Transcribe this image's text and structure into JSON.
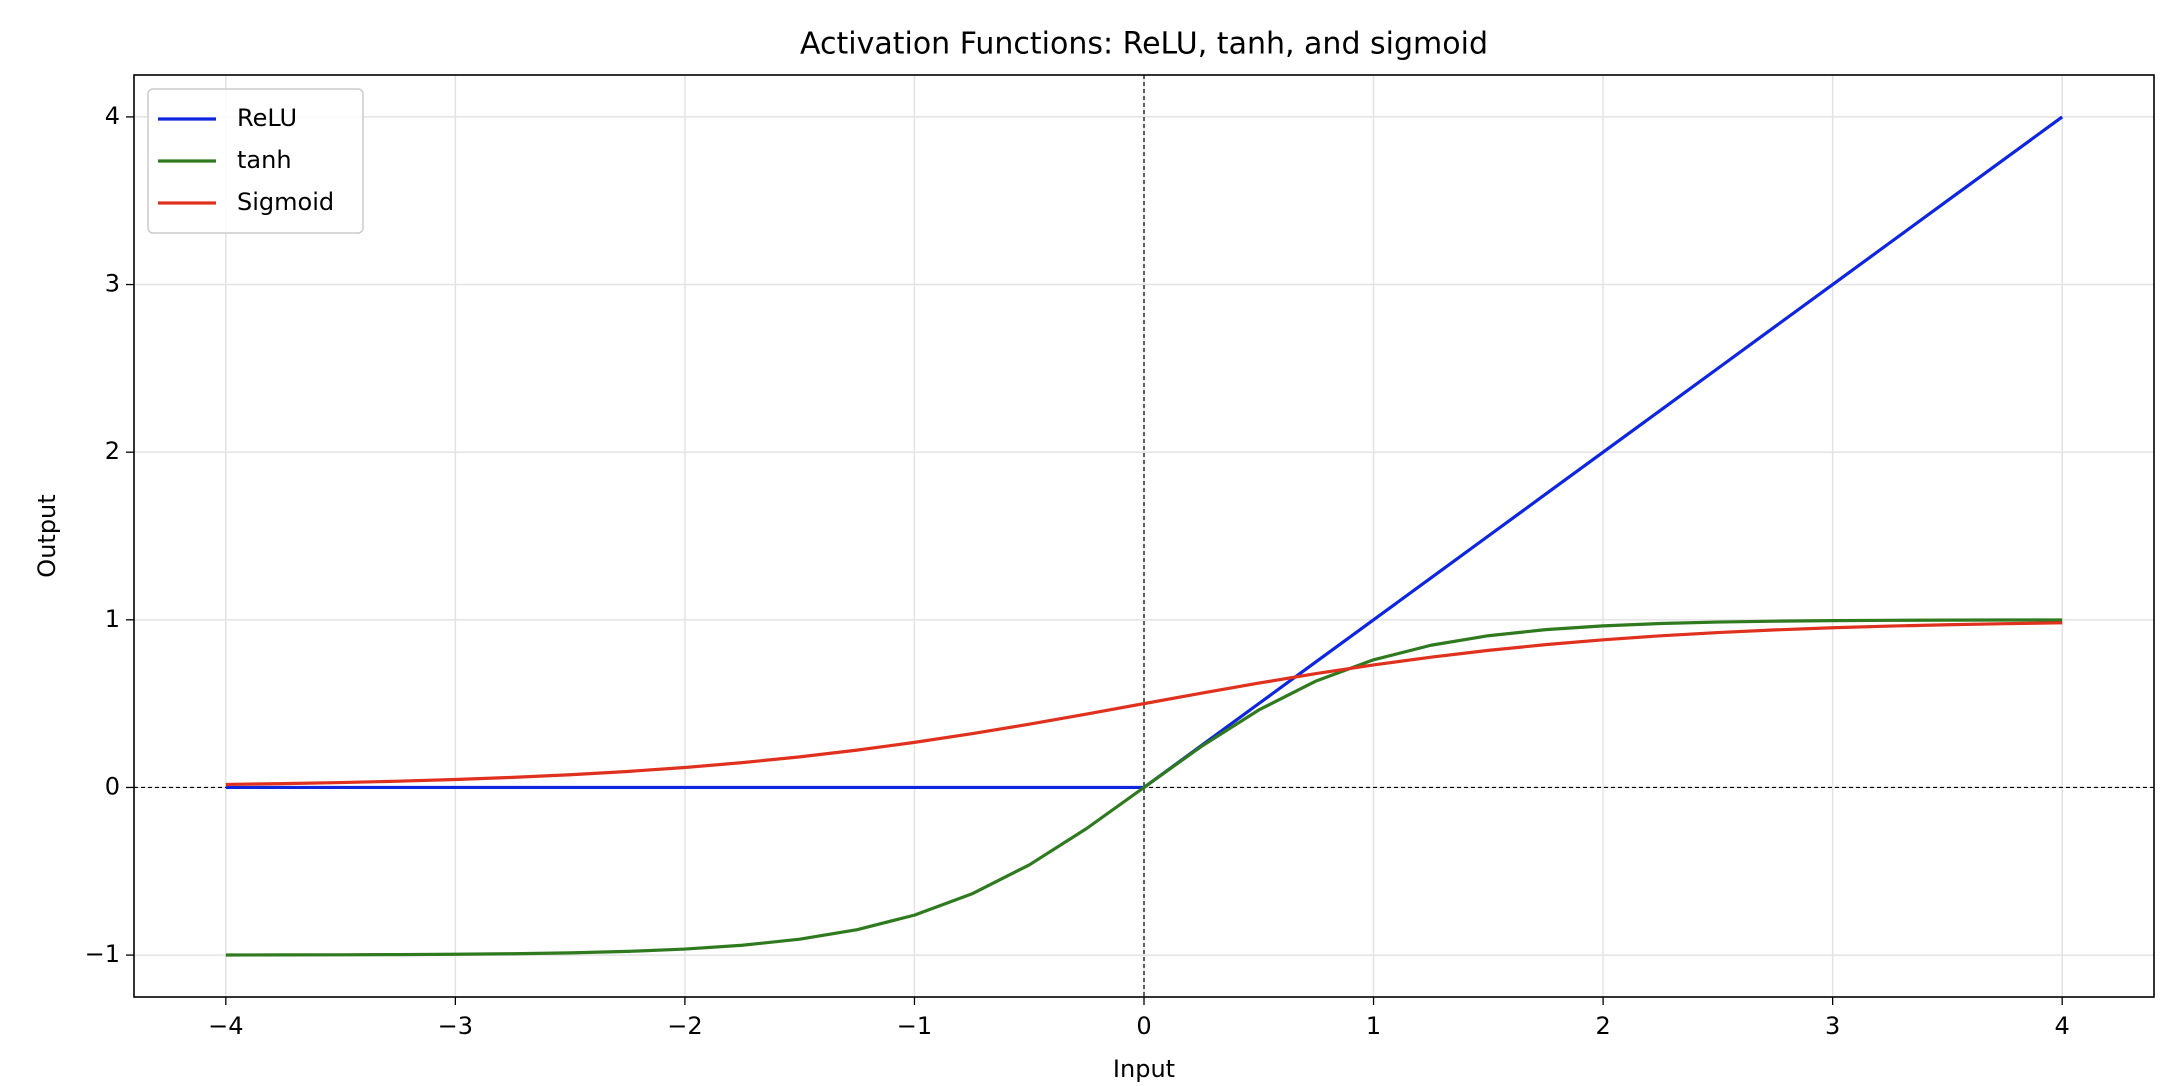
{
  "chart_data": {
    "type": "line",
    "title": "Activation Functions: ReLU, tanh, and sigmoid",
    "x_label": "Input",
    "y_label": "Output",
    "x": [
      -4,
      -3.75,
      -3.5,
      -3.25,
      -3,
      -2.75,
      -2.5,
      -2.25,
      -2,
      -1.75,
      -1.5,
      -1.25,
      -1,
      -0.75,
      -0.5,
      -0.25,
      0,
      0.25,
      0.5,
      0.75,
      1,
      1.25,
      1.5,
      1.75,
      2,
      2.25,
      2.5,
      2.75,
      3,
      3.25,
      3.5,
      3.75,
      4
    ],
    "series": [
      {
        "name": "ReLU",
        "color": "#0f26e0",
        "values": [
          0,
          0,
          0,
          0,
          0,
          0,
          0,
          0,
          0,
          0,
          0,
          0,
          0,
          0,
          0,
          0,
          0,
          0.25,
          0.5,
          0.75,
          1,
          1.25,
          1.5,
          1.75,
          2,
          2.25,
          2.5,
          2.75,
          3,
          3.25,
          3.5,
          3.75,
          4
        ]
      },
      {
        "name": "tanh",
        "color": "#2f7a1f",
        "values": [
          -0.9993,
          -0.9989,
          -0.9982,
          -0.997,
          -0.9951,
          -0.9919,
          -0.9866,
          -0.978,
          -0.964,
          -0.9414,
          -0.9051,
          -0.8483,
          -0.7616,
          -0.6351,
          -0.4621,
          -0.2449,
          0,
          0.2449,
          0.4621,
          0.6351,
          0.7616,
          0.8483,
          0.9051,
          0.9414,
          0.964,
          0.978,
          0.9866,
          0.9919,
          0.9951,
          0.997,
          0.9982,
          0.9989,
          0.9993
        ]
      },
      {
        "name": "Sigmoid",
        "color": "#e0301e",
        "values": [
          0.018,
          0.023,
          0.0293,
          0.0373,
          0.0474,
          0.0601,
          0.0759,
          0.0953,
          0.1192,
          0.148,
          0.1824,
          0.2227,
          0.2689,
          0.3208,
          0.3775,
          0.4378,
          0.5,
          0.5622,
          0.6225,
          0.6792,
          0.7311,
          0.7773,
          0.8176,
          0.852,
          0.8808,
          0.9047,
          0.9241,
          0.9399,
          0.9526,
          0.9627,
          0.9707,
          0.977,
          0.982
        ]
      }
    ],
    "xlim": [
      -4.4,
      4.4
    ],
    "xticks": [
      {
        "value": -4,
        "label": "−4"
      },
      {
        "value": -3,
        "label": "−3"
      },
      {
        "value": -2,
        "label": "−2"
      },
      {
        "value": -1,
        "label": "−1"
      },
      0,
      1,
      2,
      3,
      4
    ],
    "ylim": [
      -1.25,
      4.25
    ],
    "yticks": [
      {
        "value": -1,
        "label": "−1"
      },
      0,
      1,
      2,
      3,
      4
    ],
    "grid": true,
    "zero_lines": true,
    "legend": "upper left"
  }
}
